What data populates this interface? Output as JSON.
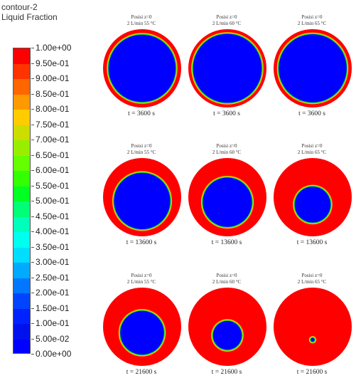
{
  "legend": {
    "title_line1": "contour-2",
    "title_line2": "Liquid Fraction",
    "ticks": [
      "1.00e+00",
      "9.50e-01",
      "9.00e-01",
      "8.50e-01",
      "8.00e-01",
      "7.50e-01",
      "7.00e-01",
      "6.50e-01",
      "6.00e-01",
      "5.50e-01",
      "5.00e-01",
      "4.50e-01",
      "4.00e-01",
      "3.50e-01",
      "3.00e-01",
      "2.50e-01",
      "2.00e-01",
      "1.50e-01",
      "1.00e-01",
      "5.00e-02",
      "0.00e+00"
    ],
    "colors": [
      "#ff0000",
      "#ff3300",
      "#ff6600",
      "#ff9900",
      "#ffcc00",
      "#ccdd00",
      "#99ee00",
      "#66ff00",
      "#33ff00",
      "#00ff22",
      "#00ff77",
      "#00ffbb",
      "#00ffee",
      "#00ddff",
      "#00aaff",
      "#0077ff",
      "#0044ff",
      "#0022ff",
      "#0011ee",
      "#0000ff"
    ]
  },
  "colors": {
    "solid": "#0000ff",
    "liquid": "#ff0000",
    "mushy_inner": "#00ee33",
    "mushy_outer": "#ffbb00"
  },
  "panels": [
    {
      "hdr1": "Posisi z=0",
      "hdr2": "2 L/min 55 °C",
      "time": "t = 3600 s",
      "solid_fraction": 0.86
    },
    {
      "hdr1": "Posisi z=0",
      "hdr2": "2 L/min 60 °C",
      "time": "t = 3600 s",
      "solid_fraction": 0.88
    },
    {
      "hdr1": "Posisi z=0",
      "hdr2": "2 L/min 65 °C",
      "time": "t = 3600 s",
      "solid_fraction": 0.87
    },
    {
      "hdr1": "Posisi z=0",
      "hdr2": "2 L/min 55 °C",
      "time": "t = 13600 s",
      "solid_fraction": 0.72
    },
    {
      "hdr1": "Posisi z=0",
      "hdr2": "2 L/min 60 °C",
      "time": "t = 13600 s",
      "solid_fraction": 0.63
    },
    {
      "hdr1": "Posisi z=0",
      "hdr2": "2 L/min 65 °C",
      "time": "t = 13600 s",
      "solid_fraction": 0.46
    },
    {
      "hdr1": "Posisi z=0",
      "hdr2": "2 L/min 55 °C",
      "time": "t = 21600 s",
      "solid_fraction": 0.56
    },
    {
      "hdr1": "Posisi z=0",
      "hdr2": "2 L/min 60 °C",
      "time": "t = 21600 s",
      "solid_fraction": 0.37
    },
    {
      "hdr1": "Posisi z=0",
      "hdr2": "2 L/min 65 °C",
      "time": "t = 21600 s",
      "solid_fraction": 0.05
    }
  ]
}
